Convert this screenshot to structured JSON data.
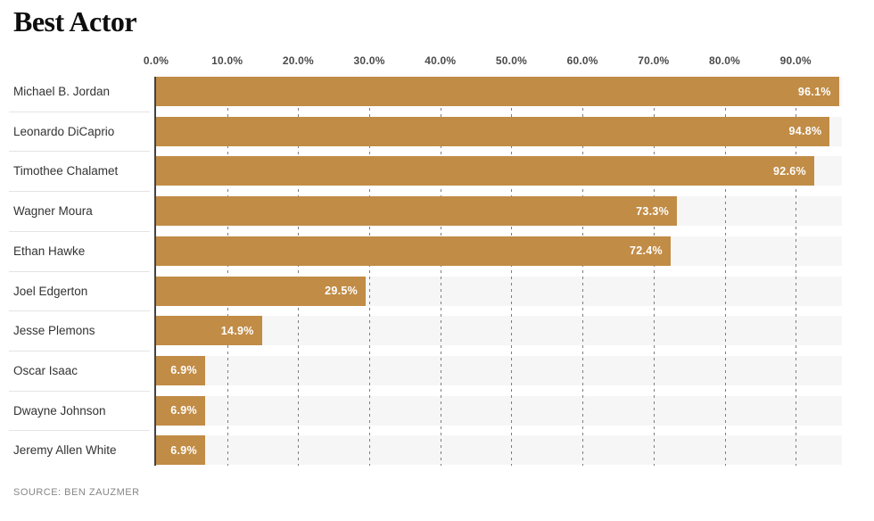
{
  "title": "Best Actor",
  "source": "SOURCE: BEN ZAUZMER",
  "colors": {
    "bar": "#c18c46",
    "track": "#f6f6f6",
    "gridline": "#7d7d7d",
    "axis_line": "#414141",
    "value_label": "#ffffff",
    "category_label": "#333333",
    "tick_label": "#4a4a4a"
  },
  "chart_data": {
    "type": "bar",
    "orientation": "horizontal",
    "title": "Best Actor",
    "categories": [
      "Michael B. Jordan",
      "Leonardo DiCaprio",
      "Timothee Chalamet",
      "Wagner Moura",
      "Ethan Hawke",
      "Joel Edgerton",
      "Jesse Plemons",
      "Oscar Isaac",
      "Dwayne Johnson",
      "Jeremy Allen White"
    ],
    "values": [
      96.1,
      94.8,
      92.6,
      73.3,
      72.4,
      29.5,
      14.9,
      6.9,
      6.9,
      6.9
    ],
    "value_labels": [
      "96.1%",
      "94.8%",
      "92.6%",
      "73.3%",
      "72.4%",
      "29.5%",
      "14.9%",
      "6.9%",
      "6.9%",
      "6.9%"
    ],
    "x_ticks": [
      "0.0%",
      "10.0%",
      "20.0%",
      "30.0%",
      "40.0%",
      "50.0%",
      "60.0%",
      "70.0%",
      "80.0%",
      "90.0%"
    ],
    "x_tick_values": [
      0,
      10,
      20,
      30,
      40,
      50,
      60,
      70,
      80,
      90
    ],
    "xlim": [
      0,
      96.5
    ],
    "xlabel": "",
    "ylabel": "",
    "grid": "dashed-vertical",
    "legend": "none",
    "source": "SOURCE: BEN ZAUZMER"
  }
}
